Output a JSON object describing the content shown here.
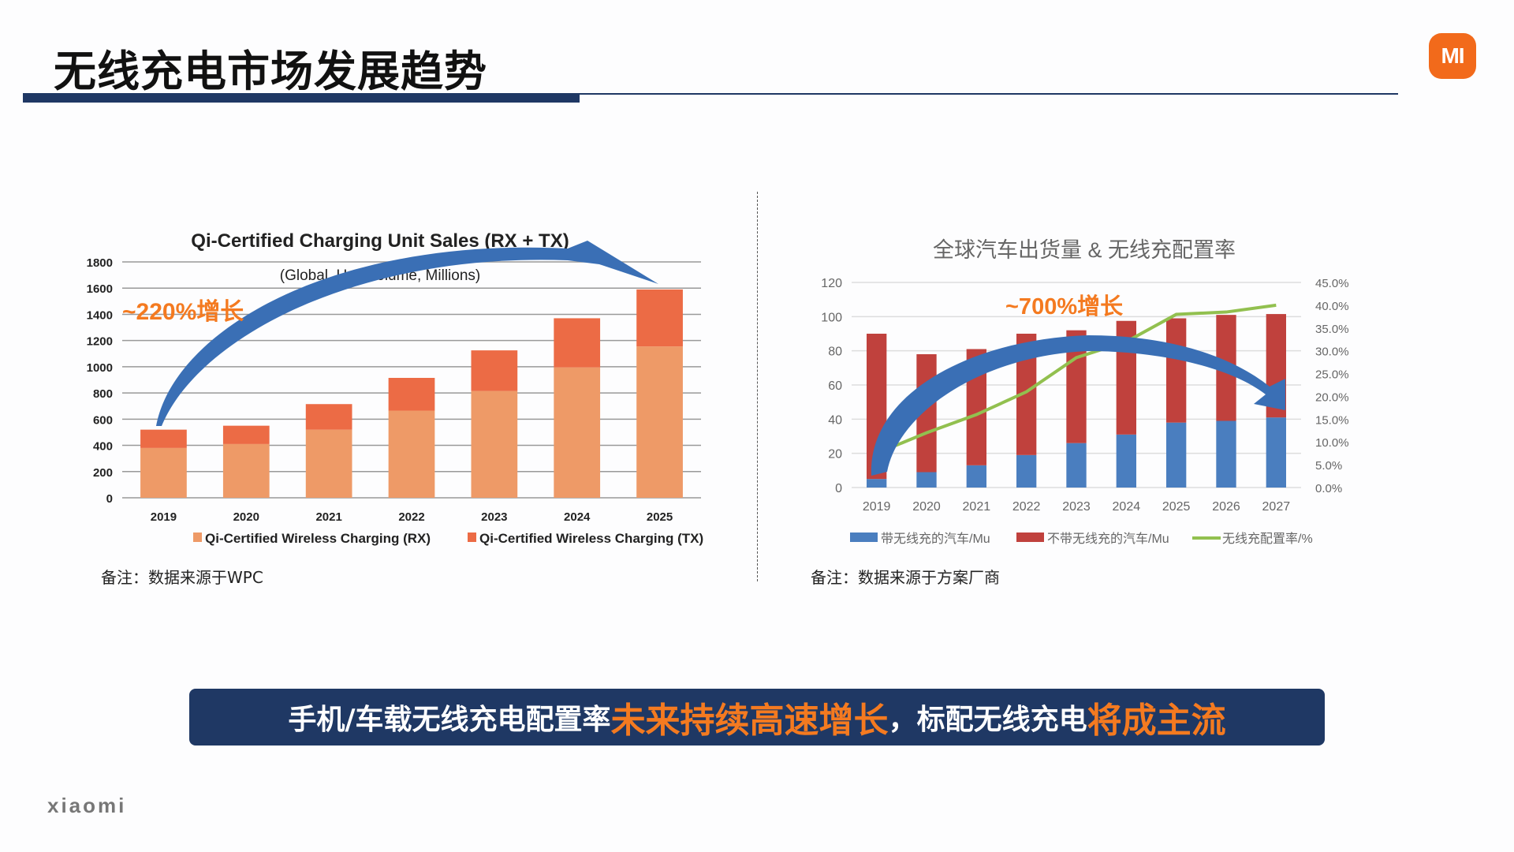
{
  "header": {
    "title": "无线充电市场发展趋势",
    "logo": "MI"
  },
  "colors": {
    "navy": "#1f3864",
    "accent": "#f47a20",
    "arrow": "#3a6fb5"
  },
  "chart_data": [
    {
      "type": "bar",
      "stacked": true,
      "title": "Qi-Certified Charging Unit Sales (RX + TX)",
      "subtitle": "(Global, Unit Volume, Millions)",
      "annotation": "~220%增长",
      "categories": [
        "2019",
        "2020",
        "2021",
        "2022",
        "2023",
        "2024",
        "2025"
      ],
      "yticks": [
        "0",
        "200",
        "400",
        "600",
        "800",
        "1000",
        "1200",
        "1400",
        "1600",
        "1800"
      ],
      "ylim": [
        0,
        1800
      ],
      "grid": true,
      "legend": "bottom",
      "series": [
        {
          "name": "Qi-Certified Wireless Charging (RX)",
          "color": "#ee9a67",
          "values": [
            380,
            410,
            520,
            665,
            815,
            995,
            1155
          ]
        },
        {
          "name": "Qi-Certified Wireless Charging (TX)",
          "color": "#ec6b45",
          "values": [
            140,
            140,
            195,
            250,
            310,
            375,
            435
          ]
        }
      ]
    },
    {
      "type": "bar",
      "stacked": true,
      "title": "全球汽车出货量 & 无线充配置率",
      "annotation": "~700%增长",
      "categories": [
        "2019",
        "2020",
        "2021",
        "2022",
        "2023",
        "2024",
        "2025",
        "2026",
        "2027"
      ],
      "yticks": [
        "0",
        "20",
        "40",
        "60",
        "80",
        "100",
        "120"
      ],
      "ylim": [
        0,
        120
      ],
      "y2ticks": [
        "0.0%",
        "5.0%",
        "10.0%",
        "15.0%",
        "20.0%",
        "25.0%",
        "30.0%",
        "35.0%",
        "40.0%",
        "45.0%"
      ],
      "y2lim": [
        0,
        45
      ],
      "grid": true,
      "legend": "bottom",
      "series": [
        {
          "name": "带无线充的汽车/Mu",
          "color": "#4a7ebf",
          "values": [
            5,
            9,
            13,
            19,
            26,
            31,
            38,
            39,
            41
          ]
        },
        {
          "name": "不带无线充的汽车/Mu",
          "color": "#c0413d",
          "values": [
            85,
            69,
            68,
            71,
            66,
            66.5,
            61,
            62,
            60.5
          ]
        },
        {
          "name": "无线充配置率/%",
          "type": "line",
          "axis": "right",
          "color": "#92c04f",
          "values": [
            7.5,
            12,
            16,
            21,
            28.5,
            32,
            38,
            38.5,
            40
          ]
        }
      ]
    }
  ],
  "notes": {
    "left": "备注：数据来源于WPC",
    "right": "备注：数据来源于方案厂商"
  },
  "banner": {
    "part1": "手机/车载无线充电配置率",
    "part2": "未来持续高速增长",
    "part3": "，标配无线充电",
    "part4": "将成主流"
  },
  "footer": {
    "brand": "xiaomi"
  }
}
